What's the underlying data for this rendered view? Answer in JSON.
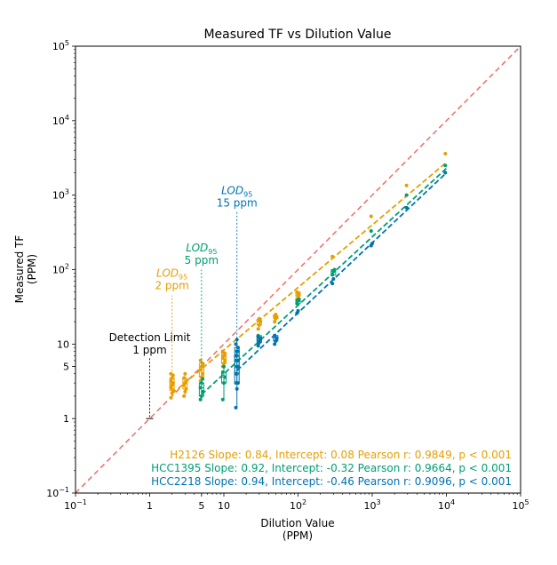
{
  "chart_data": {
    "type": "scatter",
    "title": "Measured TF vs Dilution Value",
    "xlabel": [
      "Dilution Value",
      "(PPM)"
    ],
    "ylabel": [
      "Measured TF",
      "(PPM)"
    ],
    "xscale": "log",
    "yscale": "log",
    "xlim": [
      0.1,
      100000
    ],
    "ylim": [
      0.1,
      100000
    ],
    "x_ticks": [
      {
        "value": 0.1,
        "base": "10",
        "exp": "−1"
      },
      {
        "value": 1,
        "label": "1"
      },
      {
        "value": 5,
        "label": "5"
      },
      {
        "value": 10,
        "label": "10"
      },
      {
        "value": 100,
        "base": "10",
        "exp": "2"
      },
      {
        "value": 1000,
        "base": "10",
        "exp": "3"
      },
      {
        "value": 10000,
        "base": "10",
        "exp": "4"
      },
      {
        "value": 100000,
        "base": "10",
        "exp": "5"
      }
    ],
    "y_ticks": [
      {
        "value": 0.1,
        "base": "10",
        "exp": "−1"
      },
      {
        "value": 1,
        "label": "1"
      },
      {
        "value": 5,
        "label": "5"
      },
      {
        "value": 10,
        "label": "10"
      },
      {
        "value": 100,
        "base": "10",
        "exp": "2"
      },
      {
        "value": 1000,
        "base": "10",
        "exp": "3"
      },
      {
        "value": 10000,
        "base": "10",
        "exp": "4"
      },
      {
        "value": 100000,
        "base": "10",
        "exp": "5"
      }
    ],
    "grid": false,
    "identity_line": {
      "color": "#f26b6b"
    },
    "series": [
      {
        "name": "H2126",
        "color": "#e69f00",
        "fit": {
          "slope": 0.84,
          "intercept": 0.08,
          "x_range": [
            2,
            10000
          ]
        },
        "clusters": [
          {
            "x": 2,
            "y": [
              1.9,
              2.2,
              2.4,
              2.6,
              2.8,
              3.0,
              3.2,
              3.5,
              3.8,
              4.0
            ]
          },
          {
            "x": 3,
            "y": [
              2.0,
              2.3,
              2.5,
              2.8,
              3.0,
              3.2,
              3.5,
              4.0
            ]
          },
          {
            "x": 5,
            "y": [
              3.2,
              3.6,
              4.0,
              4.5,
              5.0,
              5.5,
              6.0
            ]
          },
          {
            "x": 10,
            "y": [
              5.0,
              5.5,
              6.0,
              6.5,
              7.0,
              7.5,
              8.0
            ]
          },
          {
            "x": 30,
            "y": [
              16,
              18,
              20,
              21,
              22
            ]
          },
          {
            "x": 50,
            "y": [
              20,
              22,
              23,
              24,
              25
            ]
          },
          {
            "x": 100,
            "y": [
              40,
              44,
              47,
              50
            ]
          },
          {
            "x": 300,
            "y": [
              150
            ]
          },
          {
            "x": 1000,
            "y": [
              520
            ]
          },
          {
            "x": 3000,
            "y": [
              1350
            ]
          },
          {
            "x": 10000,
            "y": [
              3600
            ]
          }
        ]
      },
      {
        "name": "HCC1395",
        "color": "#009e73",
        "fit": {
          "slope": 0.92,
          "intercept": -0.32,
          "x_range": [
            5,
            10000
          ]
        },
        "clusters": [
          {
            "x": 5,
            "y": [
              1.8,
              2.0,
              2.3,
              2.6,
              3.0,
              3.4
            ]
          },
          {
            "x": 10,
            "y": [
              1.8,
              3.0,
              3.6,
              4.2,
              5.0
            ]
          },
          {
            "x": 15,
            "y": [
              3.0,
              4.0,
              5.0,
              6.0,
              7.0,
              8.0
            ]
          },
          {
            "x": 30,
            "y": [
              10,
              11,
              12,
              13
            ]
          },
          {
            "x": 100,
            "y": [
              35,
              38,
              40
            ]
          },
          {
            "x": 300,
            "y": [
              85,
              95,
              100
            ]
          },
          {
            "x": 1000,
            "y": [
              330
            ]
          },
          {
            "x": 3000,
            "y": [
              1000
            ]
          },
          {
            "x": 10000,
            "y": [
              2500
            ]
          }
        ]
      },
      {
        "name": "HCC2218",
        "color": "#0072b2",
        "fit": {
          "slope": 0.94,
          "intercept": -0.46,
          "x_range": [
            15,
            10000
          ]
        },
        "clusters": [
          {
            "x": 15,
            "y": [
              1.4,
              2.5,
              3.0,
              4.0,
              5.0,
              6.0,
              7.0,
              8.0,
              9.0,
              10.0,
              11.5
            ]
          },
          {
            "x": 30,
            "y": [
              9.5,
              10.5,
              11.5,
              12.5
            ]
          },
          {
            "x": 50,
            "y": [
              10,
              11,
              12,
              13
            ]
          },
          {
            "x": 100,
            "y": [
              26,
              28
            ]
          },
          {
            "x": 300,
            "y": [
              65,
              75
            ]
          },
          {
            "x": 1000,
            "y": [
              210,
              225
            ]
          },
          {
            "x": 3000,
            "y": [
              680
            ]
          },
          {
            "x": 10000,
            "y": [
              2000
            ]
          }
        ]
      }
    ],
    "lod_annotations": [
      {
        "x": 1,
        "label_value": "1 ppm",
        "label_prefix": "Detection Limit",
        "color": "#000000",
        "line": [
          1.05,
          6.5
        ],
        "text_y": 7.5
      },
      {
        "x": 2,
        "label_value": "2 ppm",
        "label_prefix": "LOD",
        "sub": "95",
        "color": "#e69f00",
        "line": [
          2.5,
          45
        ],
        "text_y": 55
      },
      {
        "x": 5,
        "label_value": "5 ppm",
        "label_prefix": "LOD",
        "sub": "95",
        "color": "#009e73",
        "line": [
          5.5,
          100
        ],
        "text_y": 120
      },
      {
        "x": 15,
        "label_value": "15 ppm",
        "label_prefix": "LOD",
        "sub": "95",
        "color": "#0072b2",
        "line": [
          12,
          600
        ],
        "text_y": 700
      }
    ],
    "detection_marker": {
      "x": 1,
      "y": 1
    },
    "stats_text": [
      {
        "text": "H2126 Slope: 0.84, Intercept: 0.08 Pearson r: 0.9849, p < 0.001",
        "color": "#e69f00"
      },
      {
        "text": "HCC1395 Slope: 0.92, Intercept: -0.32 Pearson r: 0.9664, p < 0.001",
        "color": "#009e73"
      },
      {
        "text": "HCC2218 Slope: 0.94, Intercept: -0.46 Pearson r: 0.9096, p < 0.001",
        "color": "#0072b2"
      }
    ]
  }
}
